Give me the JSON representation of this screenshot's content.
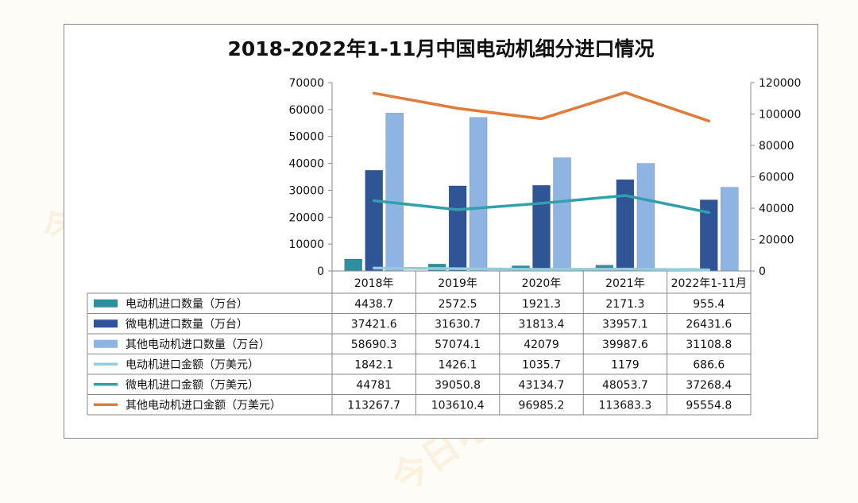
{
  "chart_data": {
    "type": "bar",
    "title": "2018-2022年1-11月中国电动机细分进口情况",
    "categories": [
      "2018年",
      "2019年",
      "2020年",
      "2021年",
      "2022年1-11月"
    ],
    "ylim": [
      0,
      70000
    ],
    "yticks": [
      "0",
      "10000",
      "20000",
      "30000",
      "40000",
      "50000",
      "60000",
      "70000"
    ],
    "y2lim": [
      0,
      120000
    ],
    "y2ticks": [
      "0",
      "20000",
      "40000",
      "60000",
      "80000",
      "100000",
      "120000"
    ],
    "grid": false,
    "legend": "table-left",
    "series": [
      {
        "name": "电动机进口数量（万台）",
        "kind": "bar",
        "axis": "left",
        "color": "#2e8f9e",
        "values": [
          4438.7,
          2572.5,
          1921.3,
          2171.3,
          955.4
        ],
        "labels": [
          "4438.7",
          "2572.5",
          "1921.3",
          "2171.3",
          "955.4"
        ]
      },
      {
        "name": "微电机进口数量（万台）",
        "kind": "bar",
        "axis": "left",
        "color": "#2f5597",
        "values": [
          37421.6,
          31630.7,
          31813.4,
          33957.1,
          26431.6
        ],
        "labels": [
          "37421.6",
          "31630.7",
          "31813.4",
          "33957.1",
          "26431.6"
        ]
      },
      {
        "name": "其他电动机进口数量（万台）",
        "kind": "bar",
        "axis": "left",
        "color": "#8eb4e3",
        "values": [
          58690.3,
          57074.1,
          42079,
          39987.6,
          31108.8
        ],
        "labels": [
          "58690.3",
          "57074.1",
          "42079",
          "39987.6",
          "31108.8"
        ]
      },
      {
        "name": "电动机进口金额（万美元）",
        "kind": "line",
        "axis": "right",
        "color": "#92cddc",
        "values": [
          1842.1,
          1426.1,
          1035.7,
          1179,
          686.6
        ],
        "labels": [
          "1842.1",
          "1426.1",
          "1035.7",
          "1179",
          "686.6"
        ]
      },
      {
        "name": "微电机进口金额（万美元）",
        "kind": "line",
        "axis": "right",
        "color": "#31a0ad",
        "values": [
          44781,
          39050.8,
          43134.7,
          48053.7,
          37268.4
        ],
        "labels": [
          "44781",
          "39050.8",
          "43134.7",
          "48053.7",
          "37268.4"
        ]
      },
      {
        "name": "其他电动机进口金额（万美元）",
        "kind": "line",
        "axis": "right",
        "color": "#e07b39",
        "values": [
          113267.7,
          103610.4,
          96985.2,
          113683.3,
          95554.8
        ],
        "labels": [
          "113267.7",
          "103610.4",
          "96985.2",
          "113683.3",
          "95554.8"
        ]
      }
    ]
  },
  "watermark": "今日电机"
}
